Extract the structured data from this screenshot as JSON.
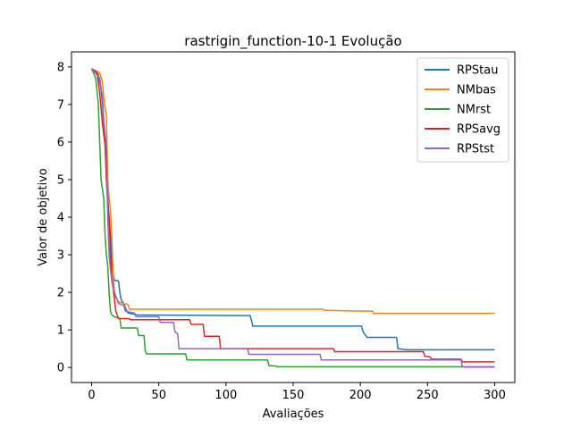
{
  "chart_data": {
    "type": "line",
    "title": "rastrigin_function-10-1 Evolução",
    "xlabel": "Avaliações",
    "ylabel": "Valor de objetivo",
    "xlim": [
      -15,
      315
    ],
    "ylim": [
      -0.4,
      8.4
    ],
    "xticks": [
      0,
      50,
      100,
      150,
      200,
      250,
      300
    ],
    "yticks": [
      0,
      1,
      2,
      3,
      4,
      5,
      6,
      7,
      8
    ],
    "grid": false,
    "legend_position": "top-right",
    "series": [
      {
        "name": "RPStau",
        "color": "#1f77b4",
        "points": [
          [
            0,
            7.95
          ],
          [
            5,
            7.8
          ],
          [
            7,
            7.4
          ],
          [
            8,
            7.0
          ],
          [
            9,
            6.5
          ],
          [
            10,
            6.0
          ],
          [
            11,
            5.0
          ],
          [
            12,
            4.3
          ],
          [
            13,
            3.95
          ],
          [
            14,
            3.5
          ],
          [
            15,
            2.8
          ],
          [
            16,
            2.5
          ],
          [
            17,
            2.32
          ],
          [
            20,
            2.3
          ],
          [
            21,
            2.0
          ],
          [
            22,
            1.8
          ],
          [
            24,
            1.7
          ],
          [
            25,
            1.6
          ],
          [
            27,
            1.45
          ],
          [
            34,
            1.4
          ],
          [
            118,
            1.38
          ],
          [
            119,
            1.25
          ],
          [
            120,
            1.1
          ],
          [
            201,
            1.1
          ],
          [
            202,
            0.95
          ],
          [
            205,
            0.8
          ],
          [
            227,
            0.8
          ],
          [
            228,
            0.5
          ],
          [
            235,
            0.47
          ],
          [
            300,
            0.47
          ]
        ]
      },
      {
        "name": "NMbas",
        "color": "#ff7f0e",
        "points": [
          [
            0,
            7.95
          ],
          [
            6,
            7.85
          ],
          [
            8,
            7.6
          ],
          [
            9,
            7.2
          ],
          [
            10,
            6.9
          ],
          [
            11,
            6.7
          ],
          [
            12,
            5.0
          ],
          [
            13,
            4.5
          ],
          [
            14,
            4.2
          ],
          [
            15,
            3.5
          ],
          [
            16,
            2.5
          ],
          [
            17,
            2.0
          ],
          [
            18,
            1.85
          ],
          [
            20,
            1.75
          ],
          [
            24,
            1.7
          ],
          [
            27,
            1.68
          ],
          [
            28,
            1.55
          ],
          [
            172,
            1.55
          ],
          [
            174,
            1.52
          ],
          [
            200,
            1.5
          ],
          [
            209,
            1.5
          ],
          [
            210,
            1.44
          ],
          [
            300,
            1.44
          ]
        ]
      },
      {
        "name": "NMrst",
        "color": "#2ca02c",
        "points": [
          [
            0,
            7.95
          ],
          [
            3,
            7.7
          ],
          [
            5,
            7.0
          ],
          [
            6,
            6.0
          ],
          [
            7,
            5.0
          ],
          [
            9,
            4.5
          ],
          [
            10,
            3.5
          ],
          [
            11,
            3.0
          ],
          [
            12,
            2.7
          ],
          [
            13,
            2.0
          ],
          [
            14,
            1.5
          ],
          [
            15,
            1.4
          ],
          [
            17,
            1.35
          ],
          [
            21,
            1.3
          ],
          [
            22,
            1.05
          ],
          [
            34,
            1.05
          ],
          [
            35,
            0.85
          ],
          [
            39,
            0.85
          ],
          [
            40,
            0.42
          ],
          [
            41,
            0.36
          ],
          [
            70,
            0.36
          ],
          [
            71,
            0.2
          ],
          [
            131,
            0.2
          ],
          [
            132,
            0.05
          ],
          [
            137,
            0.04
          ],
          [
            138,
            0.02
          ],
          [
            300,
            0.02
          ]
        ]
      },
      {
        "name": "RPSavg",
        "color": "#d62728",
        "points": [
          [
            0,
            7.95
          ],
          [
            4,
            7.85
          ],
          [
            6,
            7.3
          ],
          [
            8,
            6.5
          ],
          [
            10,
            5.9
          ],
          [
            11,
            5.0
          ],
          [
            12,
            4.5
          ],
          [
            13,
            4.0
          ],
          [
            14,
            3.0
          ],
          [
            15,
            2.4
          ],
          [
            16,
            2.1
          ],
          [
            17,
            1.8
          ],
          [
            18,
            1.5
          ],
          [
            19,
            1.4
          ],
          [
            20,
            1.3
          ],
          [
            28,
            1.3
          ],
          [
            29,
            1.27
          ],
          [
            73,
            1.27
          ],
          [
            74,
            1.15
          ],
          [
            83,
            1.15
          ],
          [
            84,
            0.83
          ],
          [
            95,
            0.83
          ],
          [
            96,
            0.5
          ],
          [
            180,
            0.5
          ],
          [
            181,
            0.42
          ],
          [
            247,
            0.42
          ],
          [
            248,
            0.3
          ],
          [
            252,
            0.28
          ],
          [
            253,
            0.22
          ],
          [
            275,
            0.22
          ],
          [
            276,
            0.15
          ],
          [
            300,
            0.15
          ]
        ]
      },
      {
        "name": "RPStst",
        "color": "#9467bd",
        "points": [
          [
            0,
            7.95
          ],
          [
            6,
            7.7
          ],
          [
            8,
            7.2
          ],
          [
            9,
            6.6
          ],
          [
            10,
            6.2
          ],
          [
            11,
            5.9
          ],
          [
            12,
            4.0
          ],
          [
            13,
            3.0
          ],
          [
            14,
            2.6
          ],
          [
            15,
            2.3
          ],
          [
            16,
            2.1
          ],
          [
            18,
            1.9
          ],
          [
            20,
            1.7
          ],
          [
            24,
            1.65
          ],
          [
            25,
            1.5
          ],
          [
            32,
            1.45
          ],
          [
            33,
            1.35
          ],
          [
            50,
            1.35
          ],
          [
            51,
            1.2
          ],
          [
            61,
            1.2
          ],
          [
            62,
            0.95
          ],
          [
            64,
            0.9
          ],
          [
            65,
            0.5
          ],
          [
            116,
            0.5
          ],
          [
            117,
            0.35
          ],
          [
            170,
            0.35
          ],
          [
            171,
            0.2
          ],
          [
            275,
            0.2
          ],
          [
            276,
            0.01
          ],
          [
            300,
            0.01
          ]
        ]
      }
    ]
  }
}
